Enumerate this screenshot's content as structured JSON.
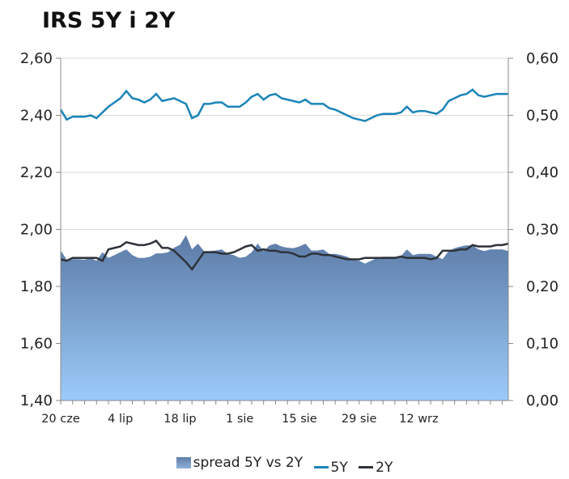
{
  "title": "IRS 5Y i 2Y",
  "chart_data": {
    "type": "line",
    "left_axis": {
      "ticks": [
        "2,60",
        "2,40",
        "2,20",
        "2,00",
        "1,80",
        "1,60",
        "1,40"
      ],
      "ylim": [
        1.4,
        2.6
      ]
    },
    "right_axis": {
      "ticks": [
        "0,60",
        "0,50",
        "0,40",
        "0,30",
        "0,20",
        "0,10",
        "0,00"
      ],
      "ylim": [
        0.0,
        0.6
      ]
    },
    "x_ticks": [
      "20 cze",
      "4 lip",
      "18 lip",
      "1 sie",
      "15 sie",
      "29 sie",
      "12 wrz"
    ],
    "x_tick_index": [
      0,
      10,
      20,
      30,
      40,
      50,
      60
    ],
    "legend": [
      "spread 5Y vs 2Y",
      "5Y",
      "2Y"
    ],
    "colors": {
      "spread": "#6f8fba",
      "y5": "#1a84b8",
      "y2": "#2e3238"
    },
    "series": [
      {
        "name": "5Y",
        "values": [
          2.42,
          2.385,
          2.395,
          2.395,
          2.395,
          2.4,
          2.39,
          2.41,
          2.43,
          2.445,
          2.46,
          2.485,
          2.46,
          2.455,
          2.445,
          2.455,
          2.475,
          2.45,
          2.455,
          2.46,
          2.45,
          2.44,
          2.39,
          2.4,
          2.44,
          2.44,
          2.445,
          2.445,
          2.43,
          2.43,
          2.43,
          2.445,
          2.465,
          2.475,
          2.455,
          2.47,
          2.475,
          2.46,
          2.455,
          2.45,
          2.445,
          2.455,
          2.44,
          2.44,
          2.44,
          2.425,
          2.42,
          2.41,
          2.4,
          2.39,
          2.385,
          2.38,
          2.39,
          2.4,
          2.405,
          2.405,
          2.405,
          2.41,
          2.43,
          2.41,
          2.415,
          2.415,
          2.41,
          2.405,
          2.42,
          2.45,
          2.46,
          2.47,
          2.475,
          2.49,
          2.47,
          2.465,
          2.47,
          2.475,
          2.475,
          2.475
        ]
      },
      {
        "name": "2Y",
        "values": [
          1.895,
          1.89,
          1.9,
          1.9,
          1.9,
          1.9,
          1.9,
          1.89,
          1.93,
          1.935,
          1.94,
          1.955,
          1.95,
          1.945,
          1.945,
          1.95,
          1.96,
          1.935,
          1.935,
          1.925,
          1.905,
          1.885,
          1.86,
          1.89,
          1.92,
          1.92,
          1.92,
          1.915,
          1.915,
          1.92,
          1.93,
          1.94,
          1.945,
          1.925,
          1.93,
          1.925,
          1.925,
          1.92,
          1.92,
          1.915,
          1.905,
          1.905,
          1.915,
          1.915,
          1.91,
          1.91,
          1.905,
          1.9,
          1.895,
          1.895,
          1.895,
          1.9,
          1.9,
          1.9,
          1.9,
          1.9,
          1.9,
          1.905,
          1.9,
          1.9,
          1.9,
          1.9,
          1.895,
          1.9,
          1.925,
          1.925,
          1.925,
          1.93,
          1.93,
          1.945,
          1.94,
          1.94,
          1.94,
          1.945,
          1.945,
          1.95
        ]
      },
      {
        "name": "spread 5Y vs 2Y",
        "values": [
          0.263,
          0.247,
          0.248,
          0.248,
          0.247,
          0.25,
          0.245,
          0.26,
          0.25,
          0.255,
          0.26,
          0.265,
          0.255,
          0.25,
          0.25,
          0.252,
          0.258,
          0.258,
          0.26,
          0.268,
          0.273,
          0.29,
          0.265,
          0.275,
          0.262,
          0.262,
          0.263,
          0.265,
          0.257,
          0.255,
          0.25,
          0.252,
          0.26,
          0.275,
          0.262,
          0.272,
          0.275,
          0.27,
          0.268,
          0.267,
          0.27,
          0.275,
          0.263,
          0.263,
          0.265,
          0.257,
          0.257,
          0.255,
          0.252,
          0.247,
          0.245,
          0.24,
          0.245,
          0.25,
          0.252,
          0.252,
          0.252,
          0.253,
          0.265,
          0.255,
          0.257,
          0.257,
          0.257,
          0.252,
          0.248,
          0.262,
          0.267,
          0.27,
          0.272,
          0.272,
          0.265,
          0.262,
          0.265,
          0.265,
          0.265,
          0.262
        ]
      }
    ]
  }
}
